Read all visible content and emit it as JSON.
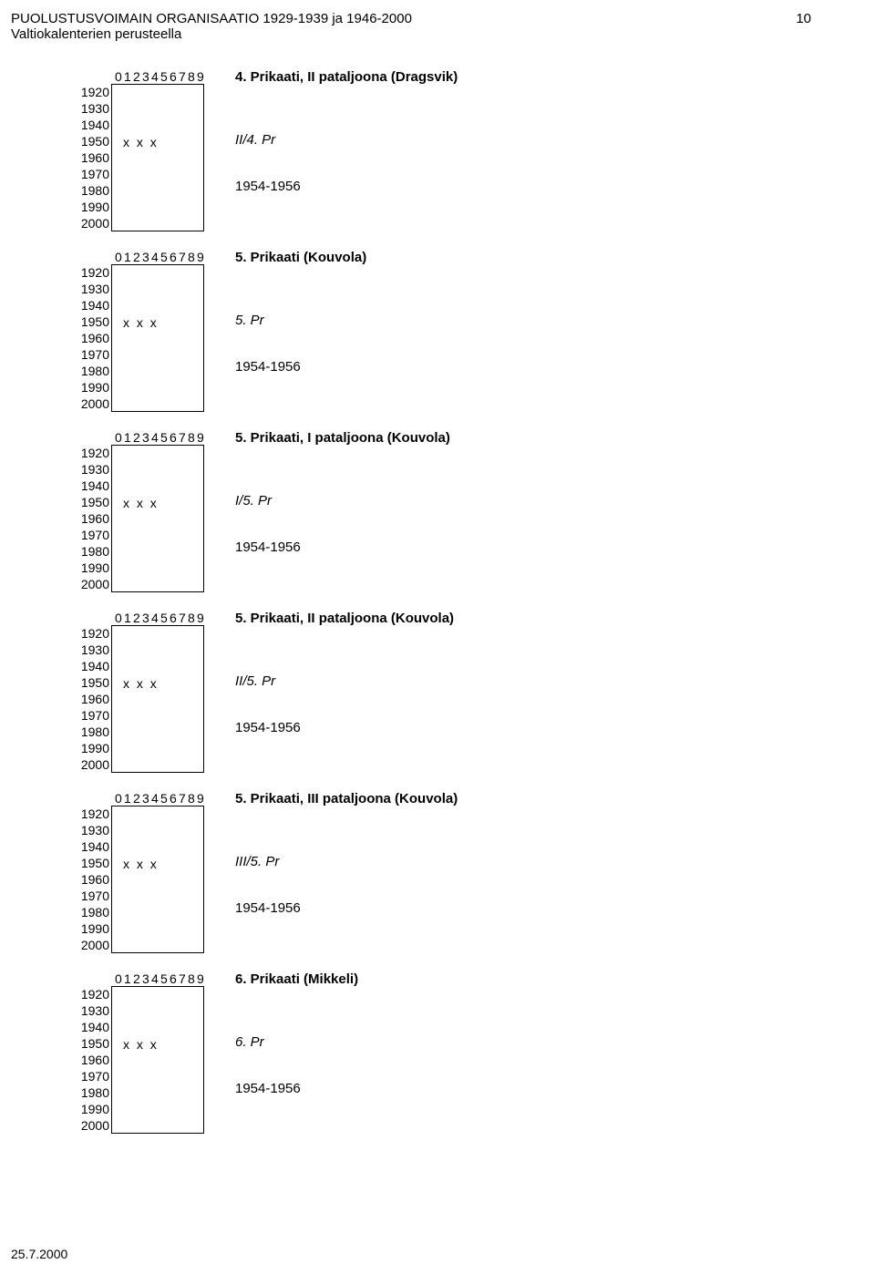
{
  "header": {
    "title_line1": "PUOLUSTUSVOIMAIN ORGANISAATIO 1929-1939 ja 1946-2000",
    "title_line2": "Valtiokalenterien perusteella",
    "page_number": "10"
  },
  "digits": [
    "0",
    "1",
    "2",
    "3",
    "4",
    "5",
    "6",
    "7",
    "8",
    "9"
  ],
  "years": [
    "1920",
    "1930",
    "1940",
    "1950",
    "1960",
    "1970",
    "1980",
    "1990",
    "2000"
  ],
  "blocks": [
    {
      "title": "4. Prikaati, II pataljoona (Dragsvik)",
      "abbr": "II/4. Pr",
      "years": "1954-1956",
      "xxx": "x x x"
    },
    {
      "title": "5. Prikaati (Kouvola)",
      "abbr": "5. Pr",
      "years": "1954-1956",
      "xxx": "x x x"
    },
    {
      "title": "5. Prikaati, I pataljoona (Kouvola)",
      "abbr": "I/5. Pr",
      "years": "1954-1956",
      "xxx": "x x x"
    },
    {
      "title": "5. Prikaati, II pataljoona (Kouvola)",
      "abbr": "II/5. Pr",
      "years": "1954-1956",
      "xxx": "x x x"
    },
    {
      "title": "5. Prikaati, III pataljoona (Kouvola)",
      "abbr": "III/5. Pr",
      "years": "1954-1956",
      "xxx": "x x x"
    },
    {
      "title": "6. Prikaati (Mikkeli)",
      "abbr": "6. Pr",
      "years": "1954-1956",
      "xxx": "x x x"
    }
  ],
  "footer": {
    "date": "25.7.2000"
  }
}
